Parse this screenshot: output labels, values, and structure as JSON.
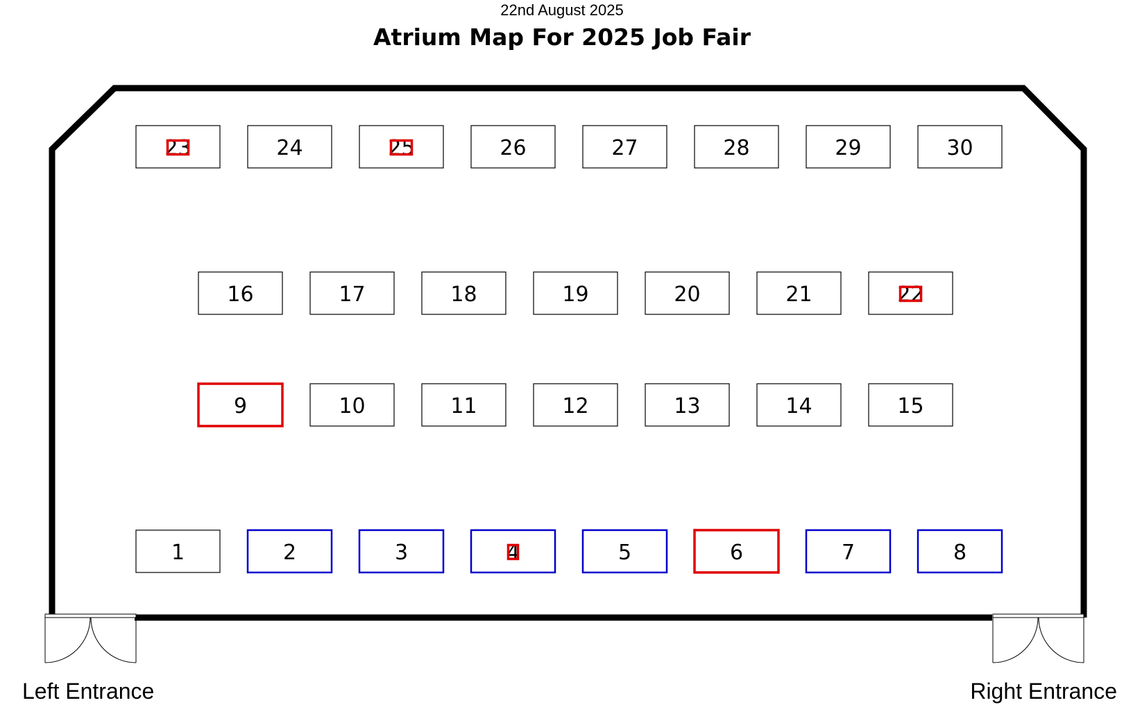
{
  "header": {
    "date": "22nd August 2025",
    "title": "Atrium Map For 2025 Job Fair"
  },
  "entrances": {
    "left": "Left Entrance",
    "right": "Right Entrance"
  },
  "colors": {
    "default_border": "#000000",
    "red_border": "#e00000",
    "blue_border": "#0000cc",
    "wall": "#000000"
  },
  "booths": [
    {
      "label": "1",
      "style": "default"
    },
    {
      "label": "2",
      "style": "blue"
    },
    {
      "label": "3",
      "style": "blue"
    },
    {
      "label": "4",
      "style": "blue",
      "marker": true
    },
    {
      "label": "5",
      "style": "blue"
    },
    {
      "label": "6",
      "style": "red"
    },
    {
      "label": "7",
      "style": "blue"
    },
    {
      "label": "8",
      "style": "blue"
    },
    {
      "label": "9",
      "style": "red"
    },
    {
      "label": "10",
      "style": "default"
    },
    {
      "label": "11",
      "style": "default"
    },
    {
      "label": "12",
      "style": "default"
    },
    {
      "label": "13",
      "style": "default"
    },
    {
      "label": "14",
      "style": "default"
    },
    {
      "label": "15",
      "style": "default"
    },
    {
      "label": "16",
      "style": "default"
    },
    {
      "label": "17",
      "style": "default"
    },
    {
      "label": "18",
      "style": "default"
    },
    {
      "label": "19",
      "style": "default"
    },
    {
      "label": "20",
      "style": "default"
    },
    {
      "label": "21",
      "style": "default"
    },
    {
      "label": "22",
      "style": "default",
      "marker": true
    },
    {
      "label": "23",
      "style": "default",
      "marker": true
    },
    {
      "label": "24",
      "style": "default"
    },
    {
      "label": "25",
      "style": "default",
      "marker": true
    },
    {
      "label": "26",
      "style": "default"
    },
    {
      "label": "27",
      "style": "default"
    },
    {
      "label": "28",
      "style": "default"
    },
    {
      "label": "29",
      "style": "default"
    },
    {
      "label": "30",
      "style": "default"
    }
  ]
}
